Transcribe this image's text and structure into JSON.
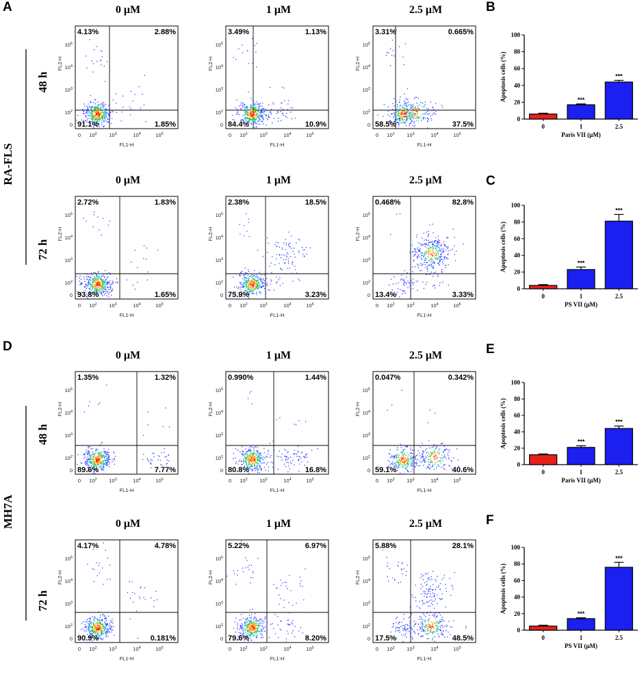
{
  "figure": {
    "row_labels": [
      "RA-FLS",
      "MH7A"
    ],
    "time_labels": [
      "48 h",
      "72 h"
    ],
    "concentrations": [
      "0 μM",
      "1 μM",
      "2.5 μM"
    ],
    "flow_axes": {
      "x_label": "FL1-H",
      "y_label": "FL2-H",
      "ticks": [
        "0",
        "10",
        "10",
        "10",
        "10"
      ],
      "exponents": [
        "",
        "2",
        "3",
        "4",
        "5"
      ]
    }
  },
  "flow_panels": [
    {
      "letter": "A",
      "cell_line": "RA-FLS",
      "time": "48 h",
      "plots": [
        {
          "conc": "0 μM",
          "ul": "4.13%",
          "ur": "2.88%",
          "ll": "91.1%",
          "lr": "1.85%"
        },
        {
          "conc": "1 μM",
          "ul": "3.49%",
          "ur": "1.13%",
          "ll": "84.4%",
          "lr": "10.9%"
        },
        {
          "conc": "2.5 μM",
          "ul": "3.31%",
          "ur": "0.665%",
          "ll": "58.5%",
          "lr": "37.5%"
        }
      ]
    },
    {
      "letter": "",
      "cell_line": "RA-FLS",
      "time": "72 h",
      "plots": [
        {
          "conc": "0 μM",
          "ul": "2.72%",
          "ur": "1.83%",
          "ll": "93.8%",
          "lr": "1.65%"
        },
        {
          "conc": "1 μM",
          "ul": "2.38%",
          "ur": "18.5%",
          "ll": "75.9%",
          "lr": "3.23%"
        },
        {
          "conc": "2.5 μM",
          "ul": "0.468%",
          "ur": "82.8%",
          "ll": "13.4%",
          "lr": "3.33%"
        }
      ]
    },
    {
      "letter": "D",
      "cell_line": "MH7A",
      "time": "48 h",
      "plots": [
        {
          "conc": "0 μM",
          "ul": "1.35%",
          "ur": "1.32%",
          "ll": "89.6%",
          "lr": "7.77%"
        },
        {
          "conc": "1 μM",
          "ul": "0.990%",
          "ur": "1.44%",
          "ll": "80.8%",
          "lr": "16.8%"
        },
        {
          "conc": "2.5 μM",
          "ul": "0.047%",
          "ur": "0.342%",
          "ll": "59.1%",
          "lr": "40.6%"
        }
      ]
    },
    {
      "letter": "",
      "cell_line": "MH7A",
      "time": "72 h",
      "plots": [
        {
          "conc": "0 μM",
          "ul": "4.17%",
          "ur": "4.78%",
          "ll": "90.9%",
          "lr": "0.181%"
        },
        {
          "conc": "1 μM",
          "ul": "5.22%",
          "ur": "6.97%",
          "ll": "79.6%",
          "lr": "8.20%"
        },
        {
          "conc": "2.5 μM",
          "ul": "5.88%",
          "ur": "28.1%",
          "ll": "17.5%",
          "lr": "48.5%"
        }
      ]
    }
  ],
  "chart_data": [
    {
      "letter": "B",
      "type": "bar",
      "title": "",
      "ylabel": "Apoptosis cells (%)",
      "xlabel": "Paris VII (μM)",
      "categories": [
        "0",
        "1",
        "2.5"
      ],
      "values": [
        6,
        17,
        44
      ],
      "errors": [
        1,
        1,
        2
      ],
      "significance": [
        "",
        "***",
        "***"
      ],
      "ylim": [
        0,
        100
      ],
      "yticks": [
        "0",
        "20",
        "40",
        "60",
        "80",
        "100"
      ],
      "colors": [
        "#e8201c",
        "#1b1ff0",
        "#1b1ff0"
      ]
    },
    {
      "letter": "C",
      "type": "bar",
      "title": "",
      "ylabel": "Apoptosis cells (%)",
      "xlabel": "PS VII (μM)",
      "categories": [
        "0",
        "1",
        "2.5"
      ],
      "values": [
        4,
        23,
        81
      ],
      "errors": [
        1,
        3,
        8
      ],
      "significance": [
        "",
        "***",
        "***"
      ],
      "ylim": [
        0,
        100
      ],
      "yticks": [
        "0",
        "20",
        "40",
        "60",
        "80",
        "100"
      ],
      "colors": [
        "#e8201c",
        "#1b1ff0",
        "#1b1ff0"
      ]
    },
    {
      "letter": "E",
      "type": "bar",
      "title": "",
      "ylabel": "Apoptosis cells (%)",
      "xlabel": "Paris VII (μM)",
      "categories": [
        "0",
        "1",
        "2.5"
      ],
      "values": [
        12,
        21,
        44
      ],
      "errors": [
        1,
        2,
        3
      ],
      "significance": [
        "",
        "***",
        "***"
      ],
      "ylim": [
        0,
        100
      ],
      "yticks": [
        "0",
        "20",
        "40",
        "60",
        "80",
        "100"
      ],
      "colors": [
        "#e8201c",
        "#1b1ff0",
        "#1b1ff0"
      ]
    },
    {
      "letter": "F",
      "type": "bar",
      "title": "",
      "ylabel": "Apoptosis cells (%)",
      "xlabel": "PS VII (μM)",
      "categories": [
        "0",
        "1",
        "2.5"
      ],
      "values": [
        5,
        14,
        76
      ],
      "errors": [
        1,
        1,
        6
      ],
      "significance": [
        "",
        "***",
        "***"
      ],
      "ylim": [
        0,
        100
      ],
      "yticks": [
        "0",
        "20",
        "40",
        "60",
        "80",
        "100"
      ],
      "colors": [
        "#e8201c",
        "#1b1ff0",
        "#1b1ff0"
      ]
    }
  ]
}
